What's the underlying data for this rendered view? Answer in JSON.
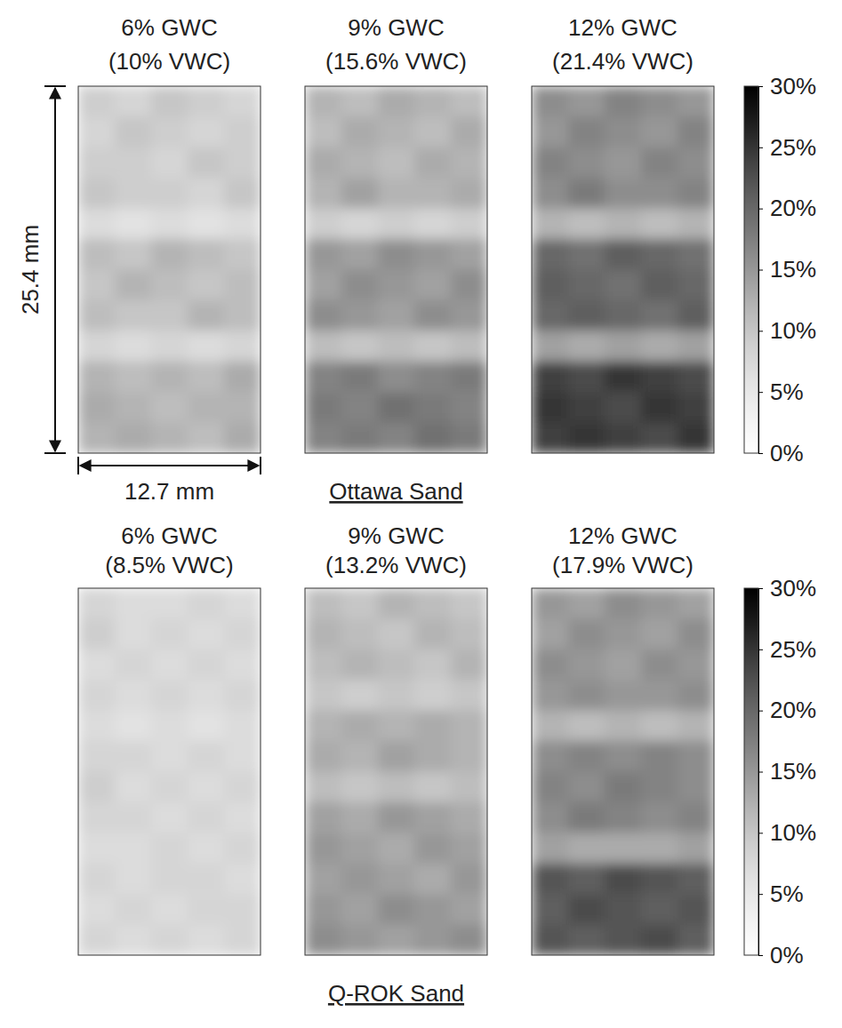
{
  "chart_data": [
    {
      "type": "heatmap",
      "title": "Ottawa Sand",
      "annotations": [
        "25.4 mm",
        "12.7 mm"
      ],
      "colorbar_range": [
        0,
        30
      ],
      "colorbar_ticks": [
        {
          "value": 0,
          "label": "0%"
        },
        {
          "value": 5,
          "label": "5%"
        },
        {
          "value": 10,
          "label": "10%"
        },
        {
          "value": 15,
          "label": "15%"
        },
        {
          "value": 20,
          "label": "20%"
        },
        {
          "value": 25,
          "label": "25%"
        },
        {
          "value": 30,
          "label": "30%"
        }
      ],
      "panels": [
        {
          "title": "6% GWC",
          "subtitle": "(10% VWC)",
          "cells": [
            [
              9,
              8,
              10,
              9,
              8
            ],
            [
              8,
              10,
              9,
              8,
              9
            ],
            [
              9,
              9,
              8,
              10,
              9
            ],
            [
              10,
              9,
              9,
              8,
              10
            ],
            [
              7,
              6,
              7,
              6,
              7
            ],
            [
              11,
              10,
              12,
              11,
              10
            ],
            [
              10,
              12,
              11,
              10,
              11
            ],
            [
              11,
              10,
              10,
              12,
              11
            ],
            [
              8,
              7,
              8,
              7,
              8
            ],
            [
              12,
              11,
              12,
              11,
              13
            ],
            [
              13,
              12,
              11,
              12,
              12
            ],
            [
              12,
              13,
              12,
              11,
              13
            ]
          ]
        },
        {
          "title": "9% GWC",
          "subtitle": "(15.6% VWC)",
          "cells": [
            [
              12,
              11,
              13,
              12,
              11
            ],
            [
              11,
              13,
              12,
              11,
              13
            ],
            [
              13,
              12,
              11,
              13,
              12
            ],
            [
              12,
              14,
              12,
              12,
              13
            ],
            [
              9,
              8,
              9,
              8,
              9
            ],
            [
              15,
              14,
              16,
              15,
              14
            ],
            [
              14,
              16,
              15,
              14,
              16
            ],
            [
              16,
              15,
              14,
              16,
              15
            ],
            [
              11,
              10,
              11,
              10,
              11
            ],
            [
              17,
              18,
              16,
              17,
              18
            ],
            [
              18,
              17,
              19,
              18,
              17
            ],
            [
              17,
              18,
              17,
              19,
              18
            ]
          ]
        },
        {
          "title": "12% GWC",
          "subtitle": "(21.4% VWC)",
          "cells": [
            [
              16,
              15,
              17,
              16,
              15
            ],
            [
              15,
              17,
              16,
              15,
              17
            ],
            [
              17,
              16,
              15,
              17,
              16
            ],
            [
              16,
              18,
              16,
              16,
              17
            ],
            [
              12,
              11,
              12,
              11,
              12
            ],
            [
              20,
              19,
              21,
              20,
              19
            ],
            [
              21,
              20,
              19,
              21,
              20
            ],
            [
              20,
              21,
              20,
              19,
              21
            ],
            [
              14,
              13,
              14,
              13,
              14
            ],
            [
              24,
              23,
              25,
              24,
              23
            ],
            [
              25,
              24,
              23,
              25,
              24
            ],
            [
              24,
              25,
              24,
              23,
              25
            ]
          ]
        }
      ]
    },
    {
      "type": "heatmap",
      "title": "Q-ROK Sand",
      "colorbar_range": [
        0,
        30
      ],
      "colorbar_ticks": [
        {
          "value": 0,
          "label": "0%"
        },
        {
          "value": 5,
          "label": "5%"
        },
        {
          "value": 10,
          "label": "10%"
        },
        {
          "value": 15,
          "label": "15%"
        },
        {
          "value": 20,
          "label": "20%"
        },
        {
          "value": 25,
          "label": "25%"
        },
        {
          "value": 30,
          "label": "30%"
        }
      ],
      "panels": [
        {
          "title": "6% GWC",
          "subtitle": "(8.5% VWC)",
          "cells": [
            [
              8,
              7,
              7,
              8,
              7
            ],
            [
              9,
              7,
              8,
              7,
              8
            ],
            [
              7,
              8,
              7,
              8,
              7
            ],
            [
              8,
              7,
              8,
              7,
              8
            ],
            [
              7,
              6,
              7,
              6,
              7
            ],
            [
              8,
              8,
              7,
              8,
              7
            ],
            [
              9,
              7,
              8,
              7,
              8
            ],
            [
              8,
              8,
              7,
              8,
              7
            ],
            [
              7,
              7,
              8,
              7,
              8
            ],
            [
              8,
              7,
              8,
              8,
              7
            ],
            [
              7,
              8,
              7,
              8,
              8
            ],
            [
              8,
              7,
              8,
              7,
              8
            ]
          ]
        },
        {
          "title": "9% GWC",
          "subtitle": "(13.2% VWC)",
          "cells": [
            [
              11,
              10,
              12,
              11,
              10
            ],
            [
              12,
              11,
              10,
              12,
              11
            ],
            [
              11,
              12,
              11,
              10,
              12
            ],
            [
              10,
              9,
              10,
              9,
              10
            ],
            [
              12,
              13,
              12,
              13,
              12
            ],
            [
              13,
              12,
              14,
              13,
              12
            ],
            [
              11,
              10,
              11,
              10,
              11
            ],
            [
              14,
              13,
              15,
              14,
              13
            ],
            [
              15,
              14,
              13,
              15,
              14
            ],
            [
              14,
              15,
              14,
              13,
              15
            ],
            [
              15,
              14,
              16,
              15,
              14
            ],
            [
              16,
              15,
              14,
              15,
              16
            ]
          ]
        },
        {
          "title": "12% GWC",
          "subtitle": "(17.9% VWC)",
          "cells": [
            [
              15,
              14,
              16,
              15,
              14
            ],
            [
              14,
              16,
              15,
              14,
              16
            ],
            [
              16,
              15,
              14,
              16,
              15
            ],
            [
              15,
              16,
              15,
              15,
              16
            ],
            [
              12,
              11,
              12,
              11,
              12
            ],
            [
              16,
              17,
              16,
              17,
              16
            ],
            [
              17,
              16,
              18,
              17,
              16
            ],
            [
              16,
              18,
              17,
              16,
              17
            ],
            [
              14,
              13,
              13,
              13,
              14
            ],
            [
              22,
              21,
              23,
              22,
              21
            ],
            [
              21,
              23,
              22,
              21,
              22
            ],
            [
              22,
              21,
              22,
              23,
              21
            ]
          ]
        }
      ]
    }
  ]
}
